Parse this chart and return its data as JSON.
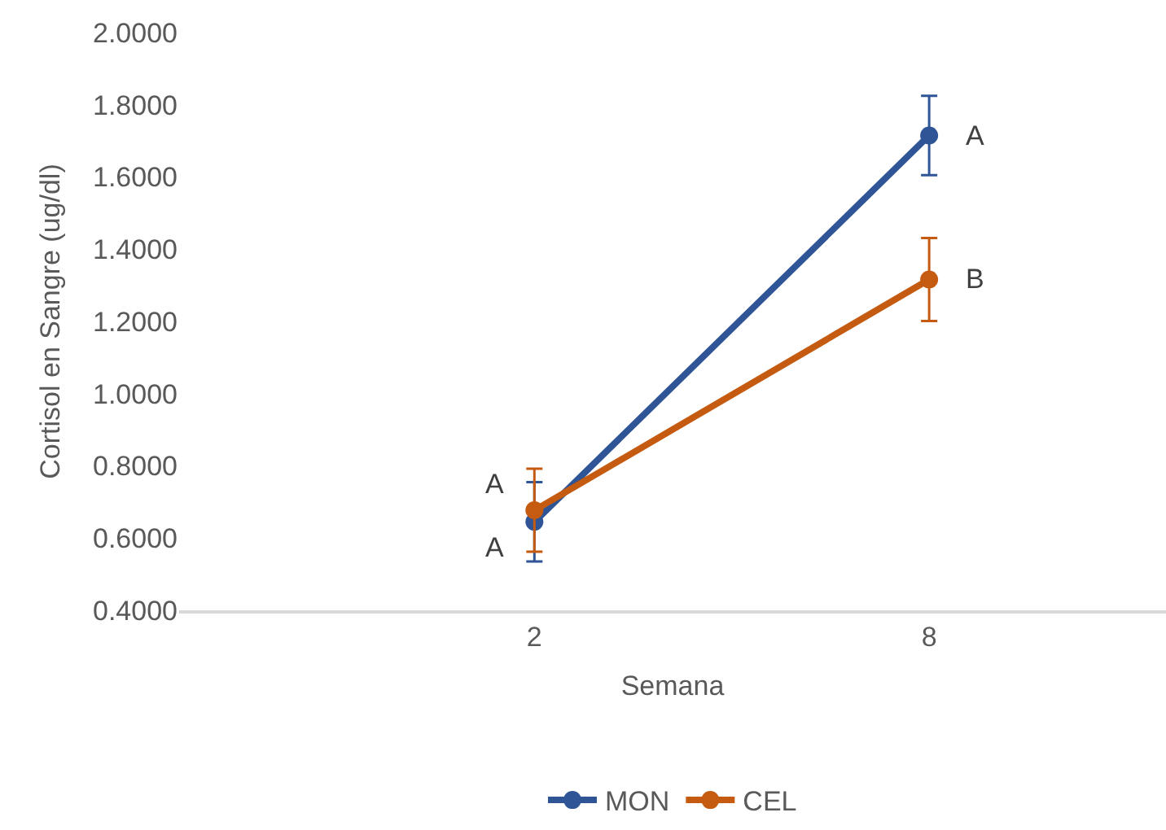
{
  "chart_data": {
    "type": "line",
    "xlabel": "Semana",
    "ylabel": "Cortisol en Sangre (ug/dl)",
    "categories": [
      "2",
      "8"
    ],
    "series": [
      {
        "name": "MON",
        "color": "#2f5597",
        "values": [
          0.645,
          1.715
        ],
        "errors": [
          0.11,
          0.11
        ]
      },
      {
        "name": "CEL",
        "color": "#c55a11",
        "values": [
          0.677,
          1.316
        ],
        "errors": [
          0.115,
          0.115
        ]
      }
    ],
    "ylim": [
      0.4,
      2.0
    ],
    "yticks": [
      {
        "value": 0.4,
        "label": "0.4000"
      },
      {
        "value": 0.6,
        "label": "0.6000"
      },
      {
        "value": 0.8,
        "label": "0.8000"
      },
      {
        "value": 1.0,
        "label": "1.0000"
      },
      {
        "value": 1.2,
        "label": "1.2000"
      },
      {
        "value": 1.4,
        "label": "1.4000"
      },
      {
        "value": 1.6,
        "label": "1.6000"
      },
      {
        "value": 1.8,
        "label": "1.8000"
      },
      {
        "value": 2.0,
        "label": "2.0000"
      }
    ],
    "annotations": [
      {
        "text": "A",
        "x": "8",
        "y": 1.715
      },
      {
        "text": "B",
        "x": "8",
        "y": 1.316
      },
      {
        "text": "A",
        "x": "2",
        "y": 0.677
      },
      {
        "text": "A",
        "x": "2",
        "y": 0.645
      }
    ],
    "grid": false,
    "legend": "bottom",
    "marker": "circle",
    "line_style": "solid"
  }
}
